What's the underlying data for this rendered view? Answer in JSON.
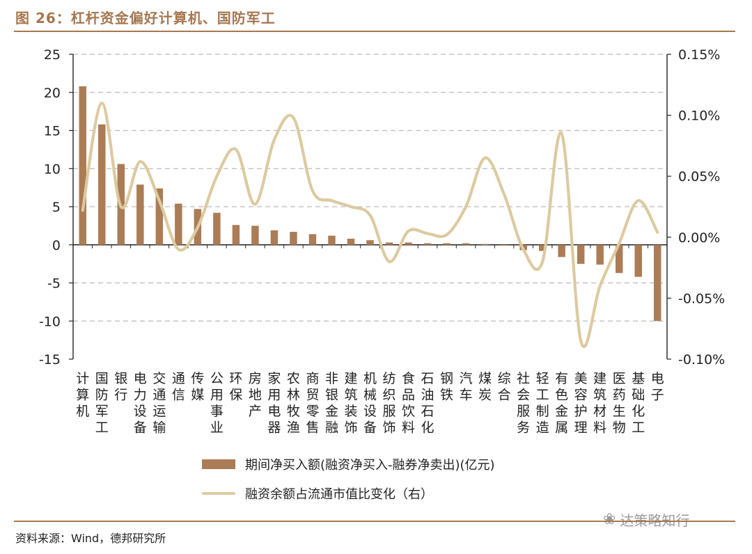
{
  "figure": {
    "title": "图 26：杠杆资金偏好计算机、国防军工",
    "source": "资料来源：Wind，德邦研究所",
    "watermark": "达策略知行"
  },
  "colors": {
    "accent": "#a5774f",
    "bar": "#ab7c55",
    "line": "#dccaa0",
    "grid": "#bbbbbb"
  },
  "chart_data": {
    "type": "bar+line",
    "categories": [
      "计算机",
      "国防军工",
      "银行",
      "电力设备",
      "交通运输",
      "通信",
      "传媒",
      "公用事业",
      "环保",
      "房地产",
      "家用电器",
      "农林牧渔",
      "商贸零售",
      "非银金融",
      "建筑装饰",
      "机械设备",
      "纺织服饰",
      "食品饮料",
      "石油石化",
      "钢铁",
      "汽车",
      "煤炭",
      "综合",
      "社会服务",
      "轻工制造",
      "有色金属",
      "美容护理",
      "建筑材料",
      "医药生物",
      "基础化工",
      "电子"
    ],
    "series": [
      {
        "name": "期间净买入额(融资净买入-融券净卖出)(亿元)",
        "axis": "left",
        "kind": "bar",
        "values": [
          20.8,
          15.8,
          10.6,
          7.9,
          7.4,
          5.4,
          4.7,
          4.2,
          2.6,
          2.5,
          1.9,
          1.7,
          1.4,
          1.2,
          0.8,
          0.6,
          0.3,
          0.3,
          0.2,
          0.2,
          0.2,
          0.1,
          -0.1,
          -0.7,
          -0.8,
          -1.6,
          -2.5,
          -2.6,
          -3.7,
          -4.2,
          -10.0
        ]
      },
      {
        "name": "融资余额占流通市值比变化（右）",
        "axis": "right",
        "kind": "line",
        "values": [
          0.022,
          0.11,
          0.025,
          0.062,
          0.03,
          -0.01,
          0.008,
          0.05,
          0.072,
          0.027,
          0.08,
          0.098,
          0.038,
          0.03,
          0.025,
          0.018,
          -0.02,
          0.005,
          0.003,
          0.002,
          0.025,
          0.065,
          0.035,
          -0.01,
          -0.02,
          0.085,
          -0.085,
          -0.04,
          -0.005,
          0.03,
          0.004
        ]
      }
    ],
    "left_axis": {
      "ylim": [
        -15,
        25
      ],
      "ticks": [
        "25",
        "20",
        "15",
        "10",
        "5",
        "0",
        "-5",
        "-10",
        "-15"
      ],
      "tick_values": [
        25,
        20,
        15,
        10,
        5,
        0,
        -5,
        -10,
        -15
      ]
    },
    "right_axis": {
      "ylim": [
        -0.1,
        0.15
      ],
      "ticks": [
        "0.15%",
        "0.10%",
        "0.05%",
        "0.00%",
        "-0.05%",
        "-0.10%"
      ],
      "tick_values": [
        0.15,
        0.1,
        0.05,
        0.0,
        -0.05,
        -0.1
      ]
    },
    "grid": "horizontal dashed",
    "legend_position": "bottom"
  }
}
